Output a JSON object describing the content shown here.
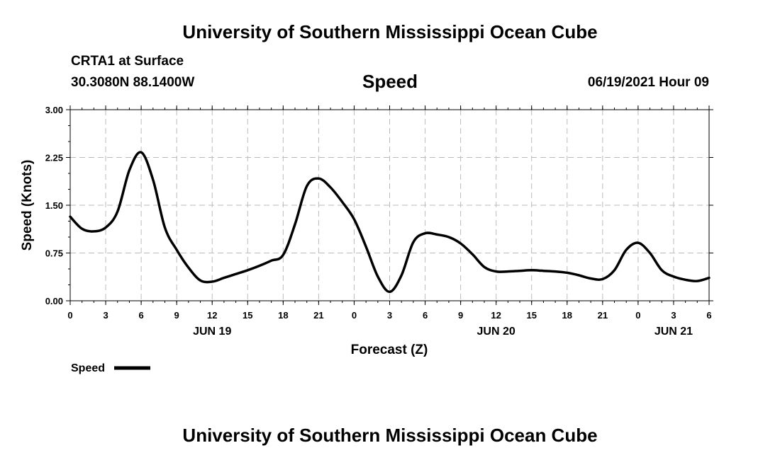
{
  "header": {
    "top_title": "University of Southern Mississippi Ocean Cube",
    "station": "CRTA1 at Surface",
    "coords": "30.3080N  88.1400W",
    "datetime": "06/19/2021 Hour 09",
    "bottom_title": "University of Southern Mississippi Ocean Cube"
  },
  "chart_data": {
    "type": "line",
    "title": "Speed",
    "xlabel": "Forecast (Z)",
    "ylabel": "Speed (Knots)",
    "ylim": [
      0,
      3
    ],
    "yticks": [
      "0.00",
      "0.75",
      "1.50",
      "2.25",
      "3.00"
    ],
    "x_range_hours": [
      0,
      54
    ],
    "x_start": "06/19 00Z",
    "xticks": [
      "0",
      "3",
      "6",
      "9",
      "12",
      "15",
      "18",
      "21",
      "0",
      "3",
      "6",
      "9",
      "12",
      "15",
      "18",
      "21",
      "0",
      "3",
      "6"
    ],
    "date_labels": [
      {
        "label": "JUN 19",
        "hour": 12
      },
      {
        "label": "JUN 20",
        "hour": 36
      },
      {
        "label": "JUN 21",
        "hour": 51
      }
    ],
    "grid": true,
    "legend": "bottom-left",
    "series": [
      {
        "name": "Speed",
        "color": "#000000",
        "x": [
          0,
          1,
          2,
          3,
          4,
          5,
          6,
          7,
          8,
          9,
          10,
          11,
          12,
          13,
          14,
          15,
          16,
          17,
          18,
          19,
          20,
          21,
          22,
          23,
          24,
          25,
          26,
          27,
          28,
          29,
          30,
          31,
          32,
          33,
          34,
          35,
          36,
          37,
          38,
          39,
          40,
          41,
          42,
          43,
          44,
          45,
          46,
          47,
          48,
          49,
          50,
          51,
          52,
          53,
          54
        ],
        "y": [
          1.32,
          1.13,
          1.09,
          1.15,
          1.4,
          2.05,
          2.33,
          1.9,
          1.15,
          0.8,
          0.52,
          0.32,
          0.3,
          0.36,
          0.42,
          0.48,
          0.55,
          0.63,
          0.72,
          1.2,
          1.8,
          1.92,
          1.78,
          1.55,
          1.28,
          0.85,
          0.38,
          0.14,
          0.4,
          0.92,
          1.06,
          1.04,
          1.0,
          0.9,
          0.73,
          0.53,
          0.46,
          0.46,
          0.47,
          0.48,
          0.47,
          0.46,
          0.44,
          0.4,
          0.35,
          0.34,
          0.48,
          0.8,
          0.91,
          0.75,
          0.48,
          0.38,
          0.33,
          0.31,
          0.36
        ]
      }
    ]
  }
}
